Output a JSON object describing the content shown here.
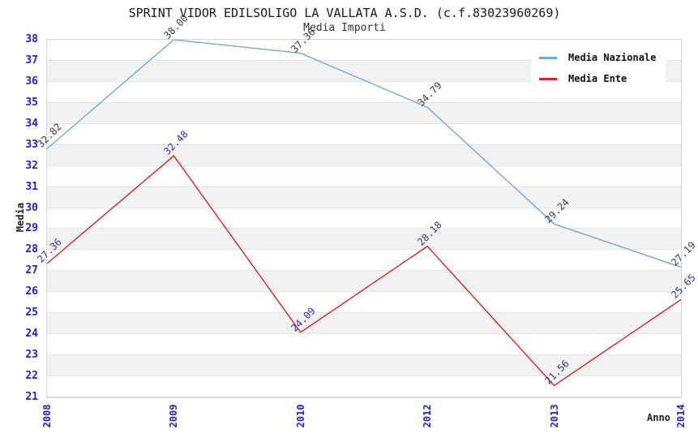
{
  "chart_data": {
    "type": "line",
    "title": "SPRINT VIDOR EDILSOLIGO LA VALLATA A.S.D. (c.f.83023960269)",
    "subtitle": "Media Importi",
    "xlabel": "Anno",
    "ylabel": "Media",
    "categories": [
      "2008",
      "2009",
      "2010",
      "2012",
      "2013",
      "2014"
    ],
    "series": [
      {
        "name": "Media Nazionale",
        "color": "#6fa8dc",
        "label_color": "#3a3a3a",
        "values": [
          32.82,
          38.0,
          37.36,
          34.79,
          29.24,
          27.19
        ]
      },
      {
        "name": "Media Ente",
        "color": "#dd1f1f",
        "label_color": "#333399",
        "values": [
          27.36,
          32.48,
          24.09,
          28.18,
          21.56,
          25.65
        ]
      }
    ],
    "ylim": [
      21,
      38
    ],
    "yticks": [
      38,
      37,
      36,
      35,
      34,
      33,
      32,
      31,
      30,
      29,
      28,
      27,
      26,
      25,
      24,
      23,
      22,
      21
    ],
    "grid": "alternating-horizontal-bands",
    "legend_position": "top-right",
    "colors": {
      "tick_labels": "#2222cc",
      "band_light": "#ffffff",
      "band_dark": "#f2f2f2",
      "grid_line": "#e3e3e3",
      "plot_border": "#d4d4d4",
      "title_text": "#1a1a1a"
    }
  }
}
